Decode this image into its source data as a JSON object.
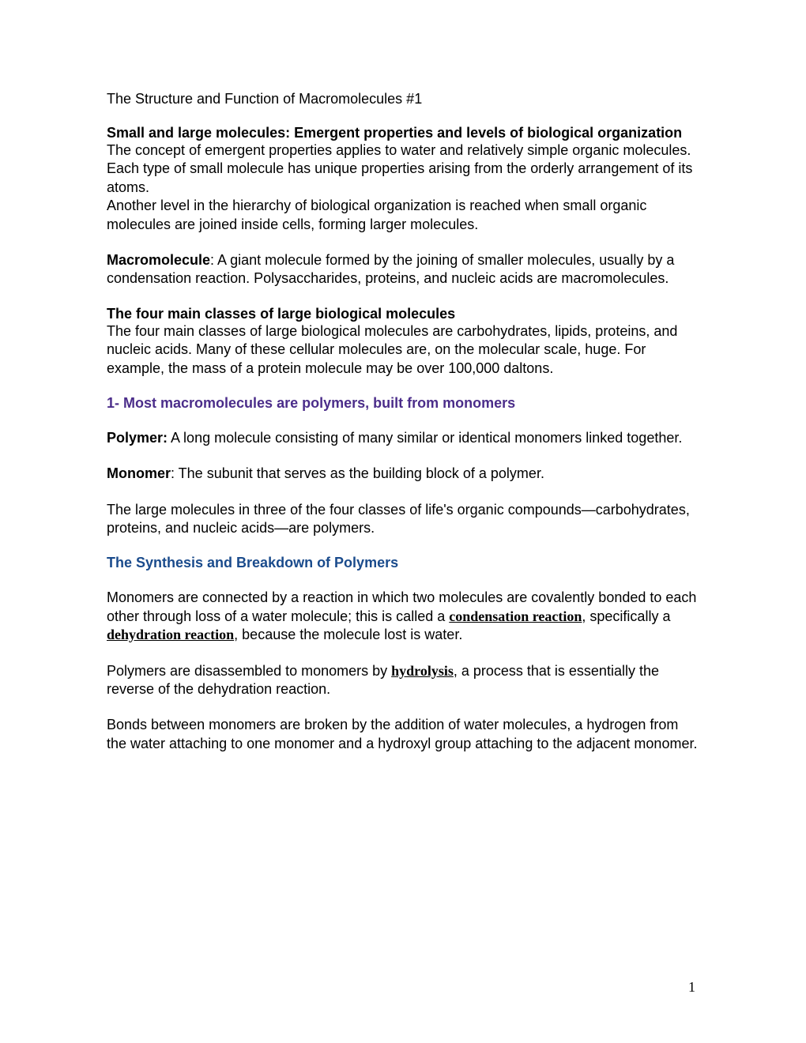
{
  "document": {
    "fontFamily": "Arial",
    "backgroundColor": "#ffffff",
    "textColor": "#000000",
    "purpleColor": "#4b2d8a",
    "blueColor": "#1a4b8c",
    "fontSize": 18,
    "title": "The Structure and Function of Macromolecules #1",
    "section1": {
      "heading": "Small and large molecules: Emergent properties and levels of biological organization",
      "para1": "The concept of emergent properties applies to water and relatively simple organic molecules.",
      "para2": "Each type of small molecule has unique properties arising from the orderly arrangement of its atoms.",
      "para3": "Another level in the hierarchy of biological organization is reached when small organic molecules are joined inside cells, forming larger molecules."
    },
    "macromolecule": {
      "term": "Macromolecule",
      "definition": ": A giant molecule formed by the joining of smaller molecules, usually by a condensation reaction. Polysaccharides, proteins, and nucleic acids are macromolecules."
    },
    "section2": {
      "heading": "The four main classes of large biological molecules",
      "body": "The four main classes of large biological molecules are carbohydrates, lipids, proteins, and nucleic acids. Many of these cellular molecules are, on the molecular scale, huge. For example, the mass of a protein molecule may be over 100,000 daltons."
    },
    "section3": {
      "heading": "1- Most macromolecules are polymers, built from monomers"
    },
    "polymer": {
      "term": "Polymer:",
      "definition": "  A long molecule consisting of many similar or identical monomers linked together."
    },
    "monomer": {
      "term": "Monomer",
      "definition": ": The subunit that serves as the building block of a polymer."
    },
    "largeMolecules": "The large molecules in three of the four classes of life's organic compounds—carbohydrates, proteins, and nucleic acids—are polymers.",
    "section4": {
      "heading": "The Synthesis and Breakdown of Polymers"
    },
    "synthesis": {
      "pre": "Monomers are connected by a reaction in which two molecules are covalently bonded to each other through loss of a water molecule; this is called a ",
      "term1": "condensation reaction",
      "mid": ", specifically a ",
      "term2": "dehydration reaction",
      "post": ", because the molecule lost is water."
    },
    "hydrolysis": {
      "pre": "Polymers are disassembled to monomers by ",
      "term": "hydrolysis",
      "post": ", a process that is essentially the reverse of the dehydration reaction."
    },
    "bonds": "Bonds between monomers are broken by the addition of water molecules, a hydrogen from the water attaching to one monomer and a hydroxyl group attaching to the adjacent monomer.",
    "pageNumber": "1"
  }
}
